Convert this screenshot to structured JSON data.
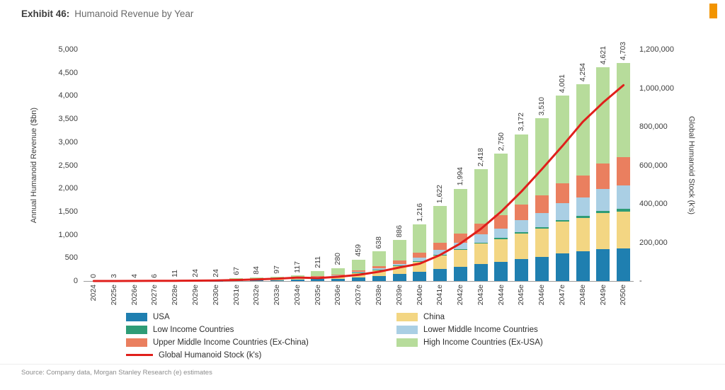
{
  "header": {
    "exhibit_label": "Exhibit 46:",
    "title": "Humanoid Revenue by Year"
  },
  "brand": {
    "color": "#F29400"
  },
  "source": "Source: Company data, Morgan Stanley Research (e) estimates",
  "chart_data": {
    "type": "bar",
    "subtype": "stacked-bars-with-line-overlay",
    "title": "Humanoid Revenue by Year",
    "grid": "off",
    "legend_position": "bottom",
    "categories": [
      "2024",
      "2025e",
      "2026e",
      "2027e",
      "2028e",
      "2029e",
      "2030e",
      "2031e",
      "2032e",
      "2033e",
      "2034e",
      "2035e",
      "2036e",
      "2037e",
      "2038e",
      "2039e",
      "2040e",
      "2041e",
      "2042e",
      "2043e",
      "2044e",
      "2045e",
      "2046e",
      "2047e",
      "2048e",
      "2049e",
      "2050e"
    ],
    "bar_total_labels": [
      "0",
      "3",
      "4",
      "6",
      "11",
      "24",
      "24",
      "67",
      "84",
      "97",
      "117",
      "211",
      "280",
      "459",
      "638",
      "886",
      "1,216",
      "1,622",
      "1,994",
      "2,418",
      "2,750",
      "3,172",
      "3,510",
      "4,001",
      "4,254",
      "4,621",
      "4,703"
    ],
    "bar_totals": [
      0,
      3,
      4,
      6,
      11,
      24,
      24,
      67,
      84,
      97,
      117,
      211,
      280,
      459,
      638,
      886,
      1216,
      1622,
      1994,
      2418,
      2750,
      3172,
      3510,
      4001,
      4254,
      4621,
      4703
    ],
    "series": [
      {
        "name": "USA",
        "color": "#1F7FB0",
        "values": [
          0,
          1,
          1,
          2,
          3,
          6,
          6,
          15,
          18,
          20,
          24,
          40,
          52,
          82,
          110,
          148,
          195,
          255,
          310,
          370,
          415,
          475,
          525,
          600,
          640,
          695,
          710
        ]
      },
      {
        "name": "China",
        "color": "#F3D683",
        "values": [
          0,
          1,
          1.5,
          2,
          4,
          8,
          8,
          20,
          25,
          28,
          33,
          48,
          62,
          98,
          132,
          178,
          231,
          300,
          365,
          435,
          485,
          555,
          605,
          680,
          715,
          770,
          790
        ]
      },
      {
        "name": "Low Income Countries",
        "color": "#2E9C76",
        "values": [
          0,
          0,
          0,
          0,
          0,
          0,
          0,
          0,
          0,
          1,
          1,
          1,
          2,
          3,
          4,
          6,
          9,
          13,
          17,
          22,
          26,
          31,
          36,
          42,
          47,
          54,
          60
        ]
      },
      {
        "name": "Lower Middle Income Countries",
        "color": "#AACFE4",
        "values": [
          0,
          0,
          0,
          0,
          0,
          0,
          0,
          2,
          3,
          3,
          4,
          7,
          10,
          18,
          28,
          42,
          73,
          105,
          135,
          175,
          210,
          255,
          300,
          355,
          395,
          470,
          500
        ]
      },
      {
        "name": "Upper Middle Income Countries (Ex-China)",
        "color": "#EA7F5F",
        "values": [
          0,
          0,
          0,
          0,
          1,
          2,
          2,
          5,
          7,
          8,
          10,
          13,
          18,
          32,
          48,
          70,
          109,
          150,
          190,
          240,
          280,
          330,
          380,
          440,
          480,
          555,
          620
        ]
      },
      {
        "name": "High Income Countries (Ex-USA)",
        "color": "#B7DC9B",
        "values": [
          0,
          1,
          1.5,
          2,
          3,
          8,
          8,
          25,
          31,
          37,
          45,
          102,
          136,
          226,
          316,
          442,
          599,
          799,
          977,
          1176,
          1334,
          1526,
          1664,
          1884,
          1977,
          2077,
          2023
        ]
      }
    ],
    "line_series": {
      "name": "Global Humanoid Stock (k's)",
      "color": "#E01F1B",
      "values": [
        0,
        100,
        300,
        600,
        1000,
        2000,
        3000,
        5000,
        8000,
        12000,
        18000,
        15000,
        22000,
        32000,
        48000,
        70000,
        90000,
        135000,
        195000,
        270000,
        360000,
        465000,
        580000,
        700000,
        825000,
        925000,
        1015000
      ]
    },
    "left_axis": {
      "label": "Annual Humanoid Revenue ($bn)",
      "min": 0,
      "max": 5000,
      "ticks": [
        "0",
        "500",
        "1,000",
        "1,500",
        "2,000",
        "2,500",
        "3,000",
        "3,500",
        "4,000",
        "4,500",
        "5,000"
      ]
    },
    "right_axis": {
      "label": "Global Humanoid Stock (k's)",
      "min": 0,
      "max": 1200000,
      "ticks": [
        "-",
        "200,000",
        "400,000",
        "600,000",
        "800,000",
        "1,000,000",
        "1,200,000"
      ]
    },
    "legend": [
      {
        "label": "USA",
        "color": "#1F7FB0",
        "type": "box"
      },
      {
        "label": "China",
        "color": "#F3D683",
        "type": "box"
      },
      {
        "label": "Low Income Countries",
        "color": "#2E9C76",
        "type": "box"
      },
      {
        "label": "Lower Middle Income Countries",
        "color": "#AACFE4",
        "type": "box"
      },
      {
        "label": "Upper Middle Income Countries (Ex-China)",
        "color": "#EA7F5F",
        "type": "box"
      },
      {
        "label": "High Income Countries (Ex-USA)",
        "color": "#B7DC9B",
        "type": "box"
      },
      {
        "label": "Global Humanoid Stock (k's)",
        "color": "#E01F1B",
        "type": "line"
      }
    ]
  }
}
